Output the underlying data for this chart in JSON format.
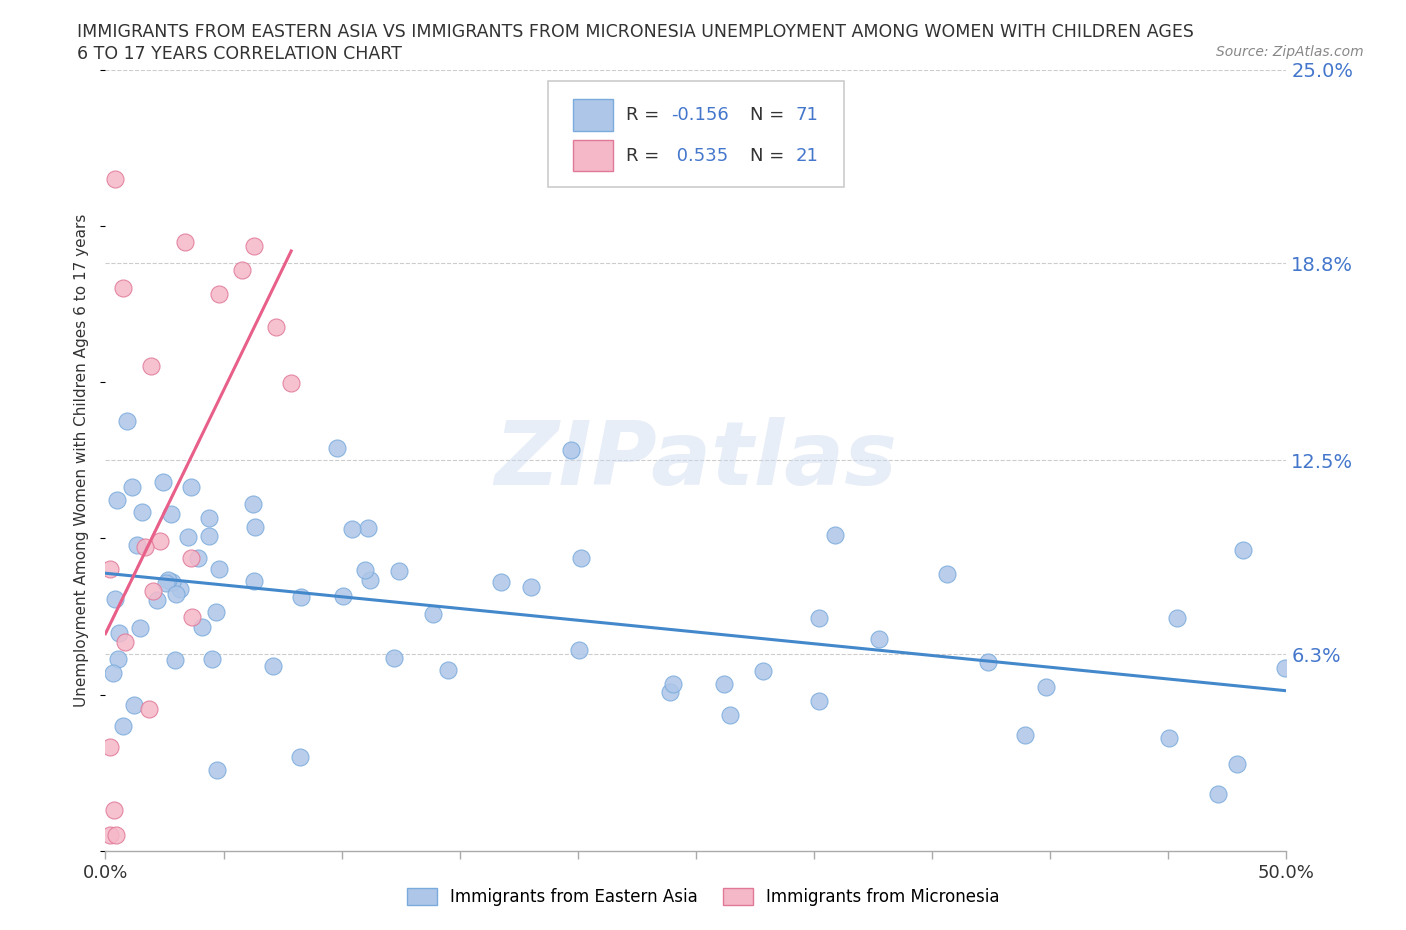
{
  "title_line1": "IMMIGRANTS FROM EASTERN ASIA VS IMMIGRANTS FROM MICRONESIA UNEMPLOYMENT AMONG WOMEN WITH CHILDREN AGES",
  "title_line2": "6 TO 17 YEARS CORRELATION CHART",
  "source_text": "Source: ZipAtlas.com",
  "ylabel": "Unemployment Among Women with Children Ages 6 to 17 years",
  "xlim": [
    0,
    50
  ],
  "ylim": [
    0,
    25
  ],
  "y_ticks_right": [
    6.3,
    12.5,
    18.8,
    25.0
  ],
  "y_tick_labels_right": [
    "6.3%",
    "12.5%",
    "18.8%",
    "25.0%"
  ],
  "grid_color": "#cccccc",
  "background_color": "#ffffff",
  "watermark_text": "ZIPatlas",
  "series1_color": "#aec6e8",
  "series1_edge": "#7aabdc",
  "series2_color": "#f5b8c8",
  "series2_edge": "#e07898",
  "trendline1_color": "#4488cc",
  "trendline2_color": "#e8608a",
  "trendline2_dash_color": "#e8a0b8",
  "series1_name": "Immigrants from Eastern Asia",
  "series2_name": "Immigrants from Micronesia",
  "ea_seed": 77,
  "mic_seed": 12,
  "legend_r1_value": "-0.156",
  "legend_n1_value": "71",
  "legend_r2_value": "0.535",
  "legend_n2_value": "21",
  "r_n_color": "#4477cc",
  "label_color": "#333333"
}
